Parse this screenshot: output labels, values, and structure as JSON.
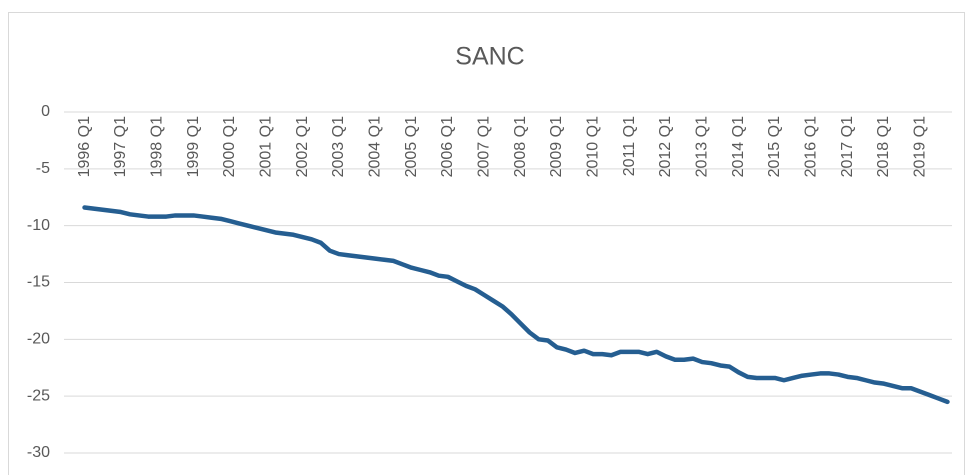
{
  "chart_data": {
    "type": "line",
    "title": "SANC",
    "categories": [
      "1996 Q1",
      null,
      null,
      null,
      "1997 Q1",
      null,
      null,
      null,
      "1998 Q1",
      null,
      null,
      null,
      "1999 Q1",
      null,
      null,
      null,
      "2000 Q1",
      null,
      null,
      null,
      "2001 Q1",
      null,
      null,
      null,
      "2002 Q1",
      null,
      null,
      null,
      "2003 Q1",
      null,
      null,
      null,
      "2004 Q1",
      null,
      null,
      null,
      "2005 Q1",
      null,
      null,
      null,
      "2006 Q1",
      null,
      null,
      null,
      "2007 Q1",
      null,
      null,
      null,
      "2008 Q1",
      null,
      null,
      null,
      "2009 Q1",
      null,
      null,
      null,
      "2010 Q1",
      null,
      null,
      null,
      "2011 Q1",
      null,
      null,
      null,
      "2012 Q1",
      null,
      null,
      null,
      "2013 Q1",
      null,
      null,
      null,
      "2014 Q1",
      null,
      null,
      null,
      "2015 Q1",
      null,
      null,
      null,
      "2016 Q1",
      null,
      null,
      null,
      "2017 Q1",
      null,
      null,
      null,
      "2018 Q1",
      null,
      null,
      null,
      "2019 Q1",
      null,
      null,
      null
    ],
    "values": [
      -8.4,
      -8.5,
      -8.6,
      -8.7,
      -8.8,
      -9.0,
      -9.1,
      -9.2,
      -9.2,
      -9.2,
      -9.1,
      -9.1,
      -9.1,
      -9.2,
      -9.3,
      -9.4,
      -9.6,
      -9.8,
      -10.0,
      -10.2,
      -10.4,
      -10.6,
      -10.7,
      -10.8,
      -11.0,
      -11.2,
      -11.5,
      -12.2,
      -12.5,
      -12.6,
      -12.7,
      -12.8,
      -12.9,
      -13.0,
      -13.1,
      -13.4,
      -13.7,
      -13.9,
      -14.1,
      -14.4,
      -14.5,
      -14.9,
      -15.3,
      -15.6,
      -16.1,
      -16.6,
      -17.1,
      -17.8,
      -18.6,
      -19.4,
      -20.0,
      -20.1,
      -20.7,
      -20.9,
      -21.2,
      -21.0,
      -21.3,
      -21.3,
      -21.4,
      -21.1,
      -21.1,
      -21.1,
      -21.3,
      -21.1,
      -21.5,
      -21.8,
      -21.8,
      -21.7,
      -22.0,
      -22.1,
      -22.3,
      -22.4,
      -22.9,
      -23.3,
      -23.4,
      -23.4,
      -23.4,
      -23.6,
      -23.4,
      -23.2,
      -23.1,
      -23.0,
      -23.0,
      -23.1,
      -23.3,
      -23.4,
      -23.6,
      -23.8,
      -23.9,
      -24.1,
      -24.3,
      -24.3,
      -24.6,
      -24.9,
      -25.2,
      -25.5
    ],
    "color": "#255e91",
    "ylim": [
      -30,
      0
    ],
    "yticks": [
      0,
      -5,
      -10,
      -15,
      -20,
      -25,
      -30
    ],
    "grid": true
  }
}
